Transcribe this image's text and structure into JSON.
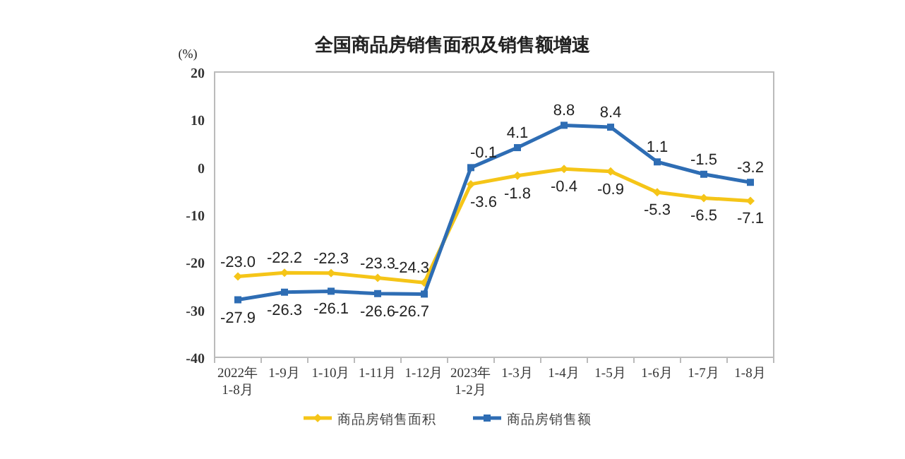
{
  "chart_data": {
    "type": "line",
    "title": "全国商品房销售面积及销售额增速",
    "ylabel": "(%)",
    "categories": [
      "2022年\n1-8月",
      "1-9月",
      "1-10月",
      "1-11月",
      "1-12月",
      "2023年\n1-2月",
      "1-3月",
      "1-4月",
      "1-5月",
      "1-6月",
      "1-7月",
      "1-8月"
    ],
    "series": [
      {
        "name": "商品房销售面积",
        "color": "#f5c518",
        "marker": "diamond",
        "values": [
          -23.0,
          -22.2,
          -22.3,
          -23.3,
          -24.3,
          -3.6,
          -1.8,
          -0.4,
          -0.9,
          -5.3,
          -6.5,
          -7.1
        ],
        "value_labels": [
          "-23.0",
          "-22.2",
          "-22.3",
          "-23.3",
          "-24.3",
          "-3.6",
          "-1.8",
          "-0.4",
          "-0.9",
          "-5.3",
          "-6.5",
          "-7.1"
        ]
      },
      {
        "name": "商品房销售额",
        "color": "#2e6db4",
        "marker": "square",
        "values": [
          -27.9,
          -26.3,
          -26.1,
          -26.6,
          -26.7,
          -0.1,
          4.1,
          8.8,
          8.4,
          1.1,
          -1.5,
          -3.2
        ],
        "value_labels": [
          "-27.9",
          "-26.3",
          "-26.1",
          "-26.6",
          "-26.7",
          "-0.1",
          "4.1",
          "8.8",
          "8.4",
          "1.1",
          "-1.5",
          "-3.2"
        ]
      }
    ],
    "ylim": [
      -40,
      20
    ],
    "yticks": [
      -40,
      -30,
      -20,
      -10,
      0,
      10,
      20
    ],
    "legend": "bottom"
  }
}
